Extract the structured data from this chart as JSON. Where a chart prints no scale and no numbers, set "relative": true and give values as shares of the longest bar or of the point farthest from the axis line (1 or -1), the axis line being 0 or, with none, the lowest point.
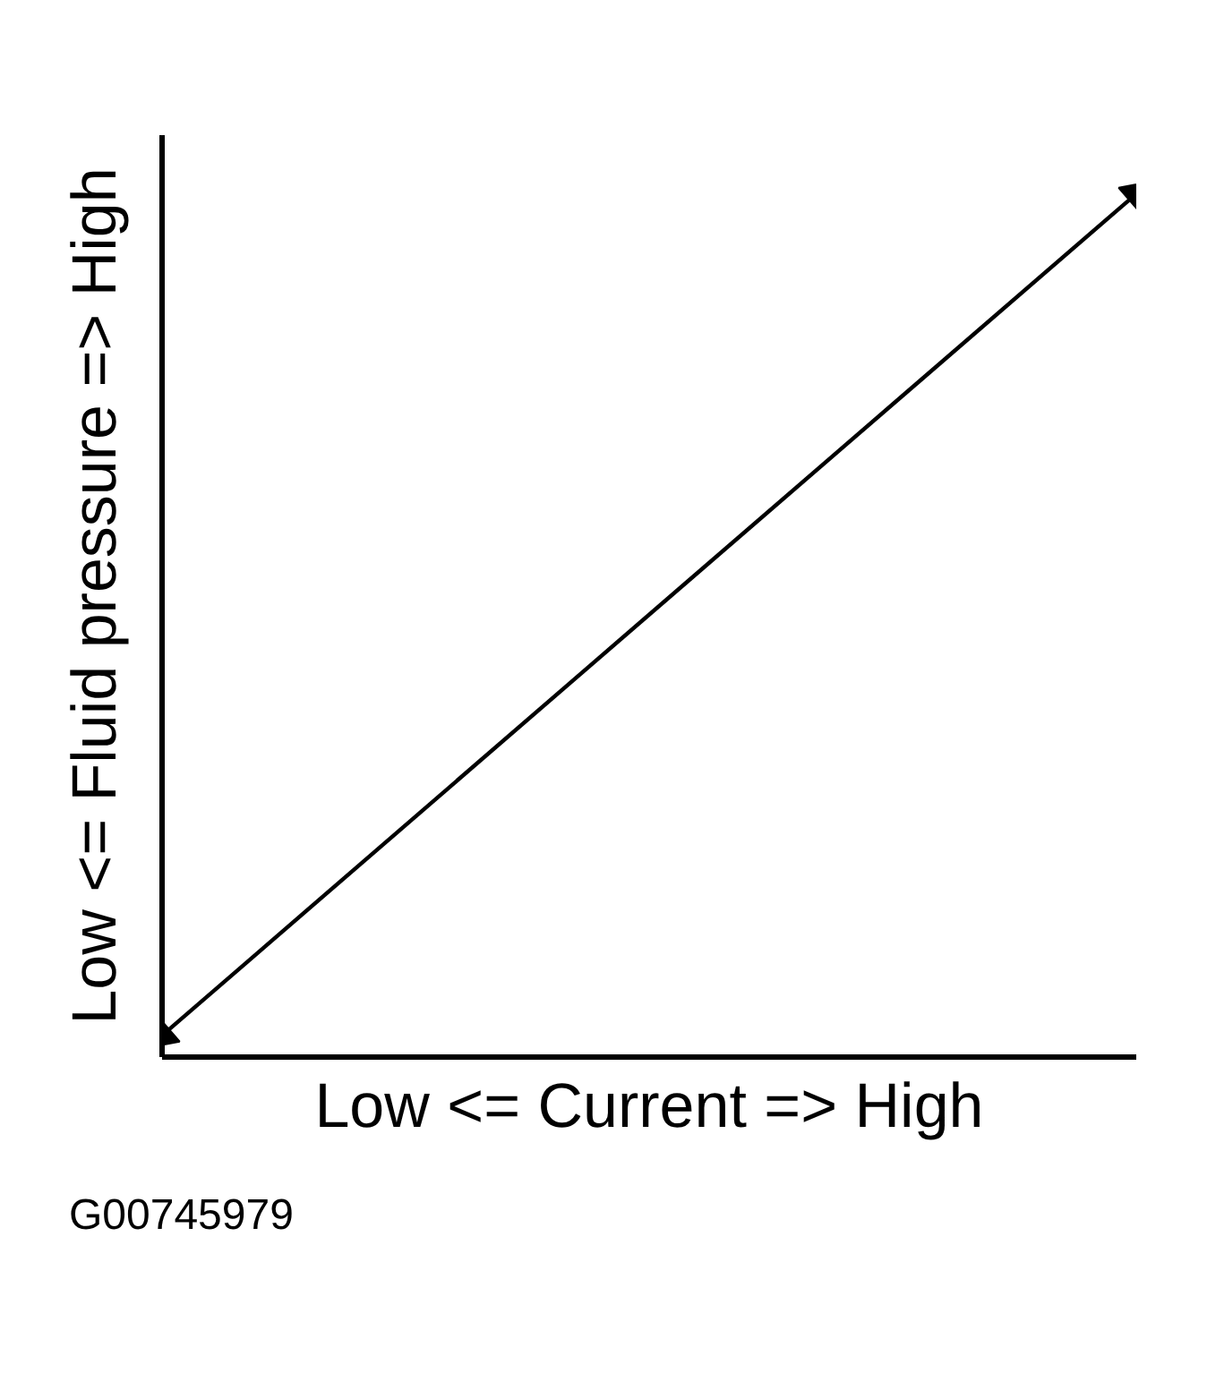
{
  "chart_data": {
    "type": "line",
    "xlabel": "Low <= Current => High",
    "ylabel": "Low <= Fluid pressure => High",
    "annotations": [
      "G00745979"
    ],
    "categories": [
      null,
      null
    ],
    "relative": true,
    "line_style": "solid",
    "marker": "triangle",
    "series": [
      {
        "color": "#000000",
        "values": [
          0.025,
          1
        ]
      }
    ]
  }
}
